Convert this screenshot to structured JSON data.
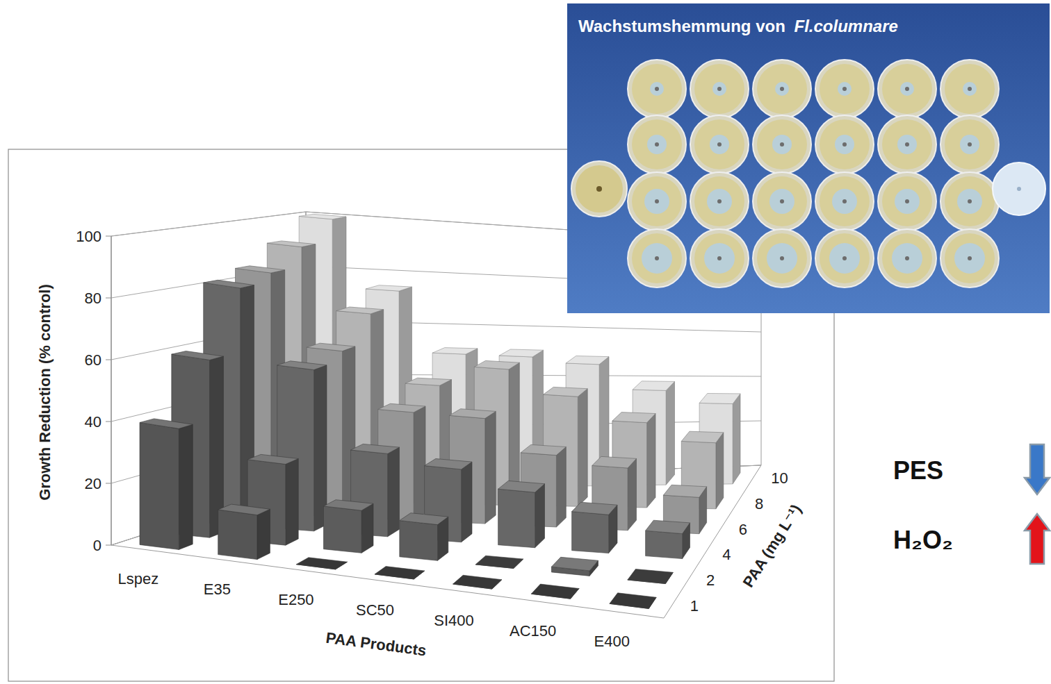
{
  "chart_data": {
    "type": "bar3d",
    "x_label": "PAA Products",
    "y_label": "Growth Reduction (% control)",
    "z_label": "PAA (mg L⁻¹)",
    "categories": [
      "Lspez",
      "E35",
      "E250",
      "SC50",
      "SI400",
      "AC150",
      "E400"
    ],
    "series": [
      {
        "name": "1",
        "color": "#555555",
        "values": [
          40,
          15,
          0,
          0,
          0,
          0,
          0
        ]
      },
      {
        "name": "2",
        "color": "#5c5c5c",
        "values": [
          60,
          28,
          15,
          13,
          0,
          2,
          0
        ]
      },
      {
        "name": "4",
        "color": "#676767",
        "values": [
          82,
          57,
          30,
          27,
          21,
          15,
          10
        ]
      },
      {
        "name": "6",
        "color": "#969696",
        "values": [
          85,
          60,
          40,
          40,
          28,
          25,
          15
        ]
      },
      {
        "name": "8",
        "color": "#b4b4b4",
        "values": [
          92,
          70,
          45,
          53,
          44,
          35,
          28
        ]
      },
      {
        "name": "10",
        "color": "#dedede",
        "values": [
          100,
          75,
          52,
          52,
          50,
          40,
          35
        ]
      }
    ],
    "ylim": [
      0,
      100
    ],
    "yticks": [
      0,
      20,
      40,
      60,
      80,
      100
    ],
    "grid": true,
    "annotations": [
      {
        "text": "PES",
        "marker": "arrow-down",
        "color": "#3a78c8"
      },
      {
        "text": "H₂O₂",
        "marker": "arrow-up",
        "color": "#e3141a"
      }
    ]
  },
  "inset": {
    "title": "Wachstumshemmung von Fl.columnare"
  }
}
